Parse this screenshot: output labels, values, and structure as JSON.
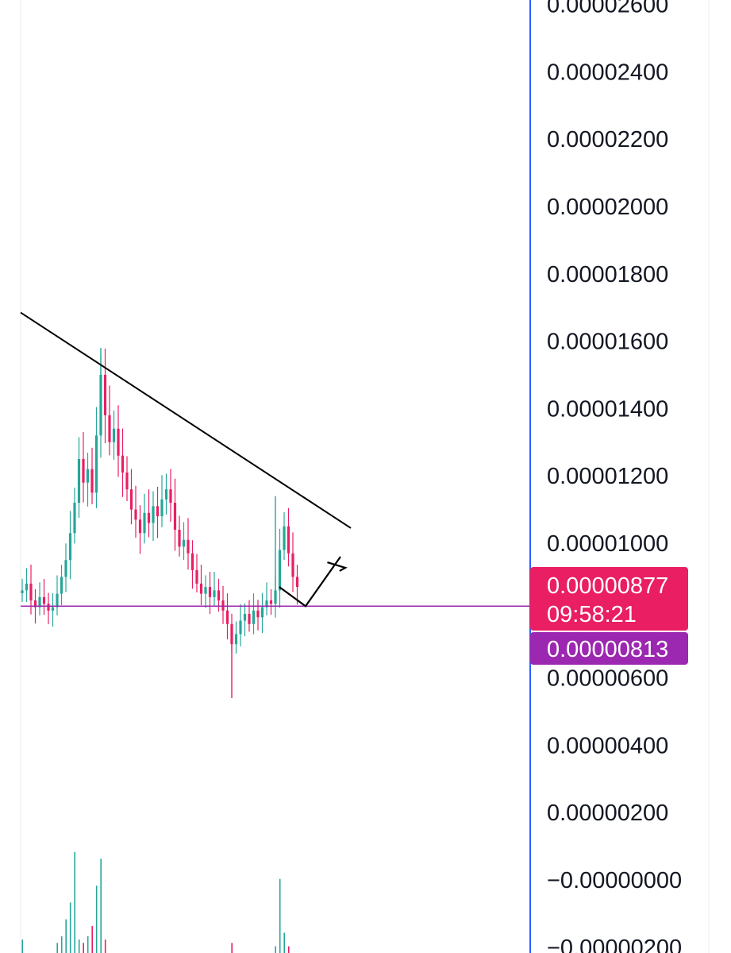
{
  "chart_data": {
    "type": "candlestick",
    "y_axis": {
      "side": "right",
      "ticks": [
        {
          "value": 2.6e-05,
          "label": "0.00002600"
        },
        {
          "value": 2.4e-05,
          "label": "0.00002400"
        },
        {
          "value": 2.2e-05,
          "label": "0.00002200"
        },
        {
          "value": 2e-05,
          "label": "0.00002000"
        },
        {
          "value": 1.8e-05,
          "label": "0.00001800"
        },
        {
          "value": 1.6e-05,
          "label": "0.00001600"
        },
        {
          "value": 1.4e-05,
          "label": "0.00001400"
        },
        {
          "value": 1.2e-05,
          "label": "0.00001200"
        },
        {
          "value": 1e-05,
          "label": "0.00001000"
        },
        {
          "value": 6e-06,
          "label": "0.00000600"
        },
        {
          "value": 4e-06,
          "label": "0.00000400"
        },
        {
          "value": 2e-06,
          "label": "0.00000200"
        },
        {
          "value": 0,
          "label": "−0.00000000"
        },
        {
          "value": -2e-06,
          "label": "−0.00000200"
        }
      ]
    },
    "price_series_close": [
      8.6e-06,
      8.8e-06,
      8.3e-06,
      8.1e-06,
      8.4e-06,
      8.2e-06,
      8e-06,
      8.1e-06,
      8.5e-06,
      9e-06,
      9.5e-06,
      1.03e-05,
      1.12e-05,
      1.25e-05,
      1.18e-05,
      1.22e-05,
      1.15e-05,
      1.32e-05,
      1.5e-05,
      1.38e-05,
      1.3e-05,
      1.34e-05,
      1.26e-05,
      1.21e-05,
      1.16e-05,
      1.1e-05,
      1.07e-05,
      1.03e-05,
      1.09e-05,
      1.06e-05,
      1.11e-05,
      1.08e-05,
      1.13e-05,
      1.16e-05,
      1.12e-05,
      1.04e-05,
      9.9e-06,
      1.01e-05,
      9.7e-06,
      9.2e-06,
      8.8e-06,
      8.5e-06,
      8.7e-06,
      8.4e-06,
      8.6e-06,
      8.3e-06,
      8e-06,
      7.6e-06,
      7e-06,
      7.3e-06,
      7.7e-06,
      7.9e-06,
      7.6e-06,
      8e-06,
      7.8e-06,
      8.1e-06,
      8.3e-06,
      8.2e-06,
      8.6e-06,
      9.8e-06,
      1.05e-05,
      9.7e-06,
      9e-06,
      8.7e-06
    ],
    "trendline": {
      "from": {
        "x": 0,
        "y": 1.685e-05
      },
      "to": {
        "x": 74,
        "y": 1.045e-05
      }
    },
    "support_line": {
      "value": 8.13e-06,
      "color": "#9c27b0"
    },
    "projection_arrow": {
      "points": [
        {
          "x": 36,
          "y": 8.7e-06
        },
        {
          "x": 39,
          "y": 8.13e-06
        },
        {
          "x": 43,
          "y": 9.6e-06
        }
      ]
    },
    "volume_series": [
      4e-07,
      0,
      0,
      0,
      0,
      0,
      0,
      0,
      3e-07,
      5e-07,
      1e-06,
      1.5e-06,
      3e-06,
      4e-07,
      3e-07,
      5e-07,
      8e-07,
      2e-06,
      2.8e-06,
      4e-07,
      0,
      0,
      0,
      0,
      0,
      0,
      0,
      0,
      0,
      0,
      0,
      0,
      0,
      0,
      0,
      0,
      0,
      0,
      0,
      0,
      0,
      0,
      0,
      0,
      0,
      0,
      0,
      0,
      3e-07,
      0,
      0,
      0,
      0,
      0,
      0,
      0,
      0,
      0,
      2e-07,
      2.2e-06,
      6e-07,
      2e-07,
      0,
      0
    ],
    "last_price_badge": {
      "price": "0.00000877",
      "countdown": "09:58:21",
      "color": "#e91e63"
    },
    "support_badge": {
      "price": "0.00000813",
      "color": "#9c27b0"
    },
    "colors": {
      "up": "#26a69a",
      "down": "#e91e63",
      "axis_border": "#2962ff",
      "trendline": "#000000",
      "grid": "#f0f3fa"
    },
    "grid": false
  }
}
